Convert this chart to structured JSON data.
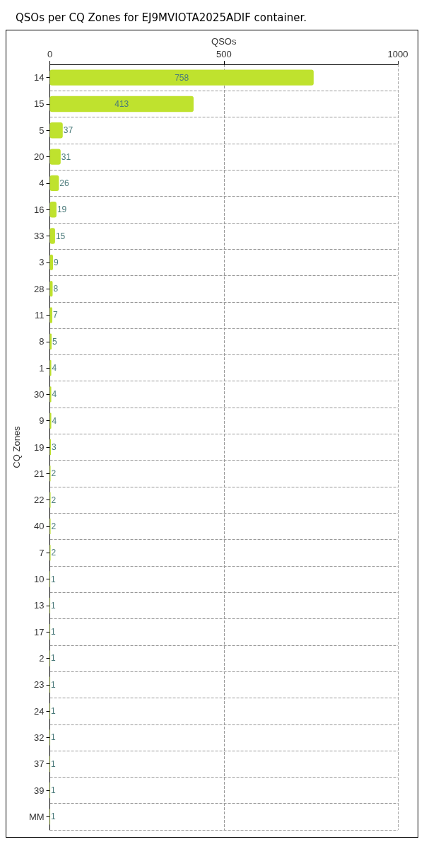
{
  "chart_data": {
    "type": "bar",
    "orientation": "horizontal",
    "title": "QSOs per CQ Zones for EJ9MVIOTA2025ADIF container.",
    "xlabel": "QSOs",
    "ylabel": "CQ Zones",
    "categories": [
      "14",
      "15",
      "5",
      "20",
      "4",
      "16",
      "33",
      "3",
      "28",
      "11",
      "8",
      "1",
      "30",
      "9",
      "19",
      "21",
      "22",
      "40",
      "7",
      "10",
      "13",
      "17",
      "2",
      "23",
      "24",
      "32",
      "37",
      "39",
      "MM"
    ],
    "values": [
      758,
      413,
      37,
      31,
      26,
      19,
      15,
      9,
      8,
      7,
      5,
      4,
      4,
      4,
      3,
      2,
      2,
      2,
      2,
      1,
      1,
      1,
      1,
      1,
      1,
      1,
      1,
      1,
      1
    ],
    "color": "#bfe22e",
    "xlim": [
      0,
      1000
    ],
    "xticks": [
      0,
      500,
      1000
    ],
    "grid": true,
    "data_labels": true
  }
}
